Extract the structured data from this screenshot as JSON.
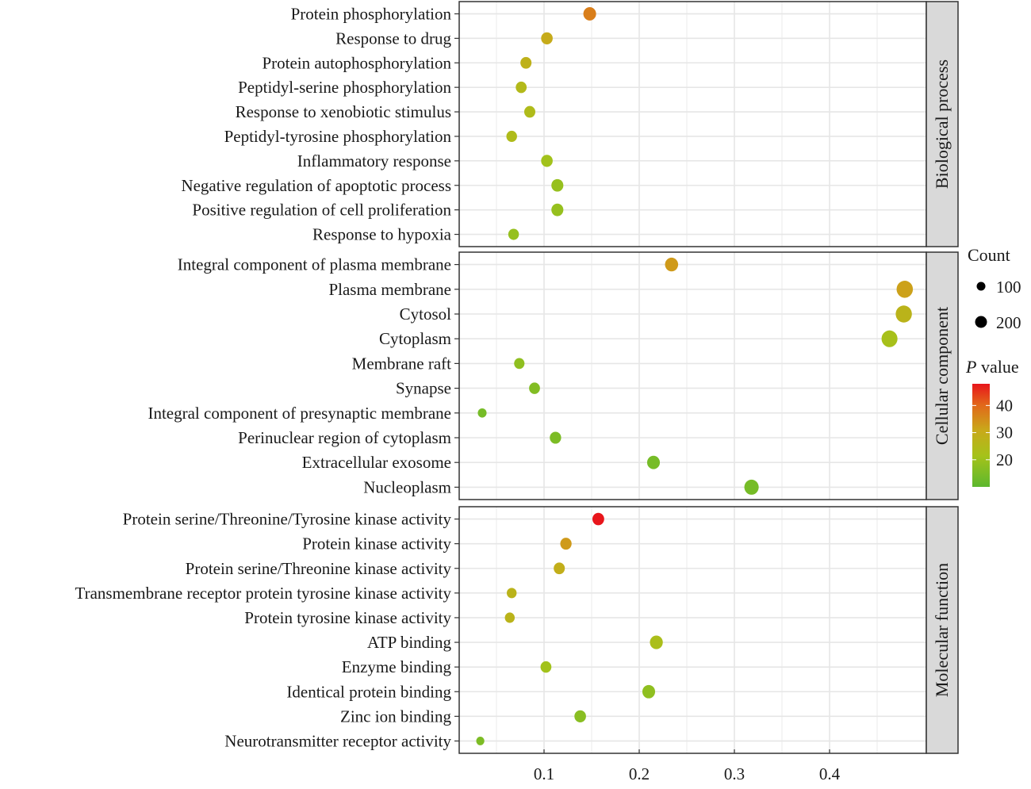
{
  "chart_data": {
    "type": "scatter",
    "subtype": "faceted-dot-plot",
    "title": "",
    "xlabel": "",
    "ylabel": "",
    "xlim": [
      0.01,
      0.5
    ],
    "x_ticks": [
      0.1,
      0.2,
      0.3,
      0.4
    ],
    "x_tick_labels": [
      "0.1",
      "0.2",
      "0.3",
      "0.4"
    ],
    "grid": true,
    "legend_placement": "right",
    "size_legend": {
      "title": "Count",
      "values": [
        100,
        200
      ],
      "labels": [
        "100",
        "200"
      ]
    },
    "color_legend": {
      "title_italic": "P",
      "title_rest": " value",
      "range": [
        10,
        48
      ],
      "ticks": [
        20,
        30,
        40
      ],
      "tick_labels": [
        "20",
        "30",
        "40"
      ],
      "low_color": "#5cb82e",
      "mid_color": "#b5bd16",
      "high_color": "#e8151b"
    },
    "facets": [
      {
        "name": "Biological process",
        "terms": [
          {
            "label": "Protein phosphorylation",
            "x": 0.148,
            "count": 110,
            "p": 37
          },
          {
            "label": "Response to drug",
            "x": 0.103,
            "count": 80,
            "p": 30
          },
          {
            "label": "Protein autophosphorylation",
            "x": 0.081,
            "count": 70,
            "p": 28
          },
          {
            "label": "Peptidyl-serine phosphorylation",
            "x": 0.076,
            "count": 65,
            "p": 25
          },
          {
            "label": "Response to xenobiotic stimulus",
            "x": 0.085,
            "count": 70,
            "p": 24
          },
          {
            "label": "Peptidyl-tyrosine phosphorylation",
            "x": 0.066,
            "count": 60,
            "p": 24
          },
          {
            "label": "Inflammatory response",
            "x": 0.103,
            "count": 80,
            "p": 21
          },
          {
            "label": "Negative regulation of apoptotic process",
            "x": 0.114,
            "count": 90,
            "p": 19
          },
          {
            "label": "Positive regulation of cell proliferation",
            "x": 0.114,
            "count": 90,
            "p": 19
          },
          {
            "label": "Response to hypoxia",
            "x": 0.068,
            "count": 60,
            "p": 19
          }
        ]
      },
      {
        "name": "Cellular component",
        "terms": [
          {
            "label": "Integral component of plasma membrane",
            "x": 0.234,
            "count": 120,
            "p": 33
          },
          {
            "label": "Plasma membrane",
            "x": 0.479,
            "count": 230,
            "p": 32
          },
          {
            "label": "Cytosol",
            "x": 0.478,
            "count": 225,
            "p": 27
          },
          {
            "label": "Cytoplasm",
            "x": 0.463,
            "count": 215,
            "p": 22
          },
          {
            "label": "Membrane raft",
            "x": 0.074,
            "count": 55,
            "p": 18
          },
          {
            "label": "Synapse",
            "x": 0.09,
            "count": 65,
            "p": 16
          },
          {
            "label": "Integral component of presynaptic membrane",
            "x": 0.035,
            "count": 28,
            "p": 14
          },
          {
            "label": "Perinuclear region of cytoplasm",
            "x": 0.112,
            "count": 75,
            "p": 15
          },
          {
            "label": "Extracellular exosome",
            "x": 0.215,
            "count": 110,
            "p": 14
          },
          {
            "label": "Nucleoplasm",
            "x": 0.318,
            "count": 160,
            "p": 14
          }
        ]
      },
      {
        "name": "Molecular function",
        "terms": [
          {
            "label": "Protein serine/Threonine/Tyrosine kinase activity",
            "x": 0.157,
            "count": 85,
            "p": 48
          },
          {
            "label": "Protein kinase activity",
            "x": 0.123,
            "count": 75,
            "p": 33
          },
          {
            "label": "Protein serine/Threonine kinase activity",
            "x": 0.116,
            "count": 70,
            "p": 29
          },
          {
            "label": "Transmembrane receptor protein tyrosine kinase activity",
            "x": 0.066,
            "count": 45,
            "p": 27
          },
          {
            "label": "Protein tyrosine kinase activity",
            "x": 0.064,
            "count": 45,
            "p": 27
          },
          {
            "label": "ATP binding",
            "x": 0.218,
            "count": 115,
            "p": 23
          },
          {
            "label": "Enzyme binding",
            "x": 0.102,
            "count": 65,
            "p": 21
          },
          {
            "label": "Identical protein binding",
            "x": 0.21,
            "count": 110,
            "p": 18
          },
          {
            "label": "Zinc ion binding",
            "x": 0.138,
            "count": 80,
            "p": 17
          },
          {
            "label": "Neurotransmitter receptor activity",
            "x": 0.033,
            "count": 20,
            "p": 15
          }
        ]
      }
    ]
  }
}
